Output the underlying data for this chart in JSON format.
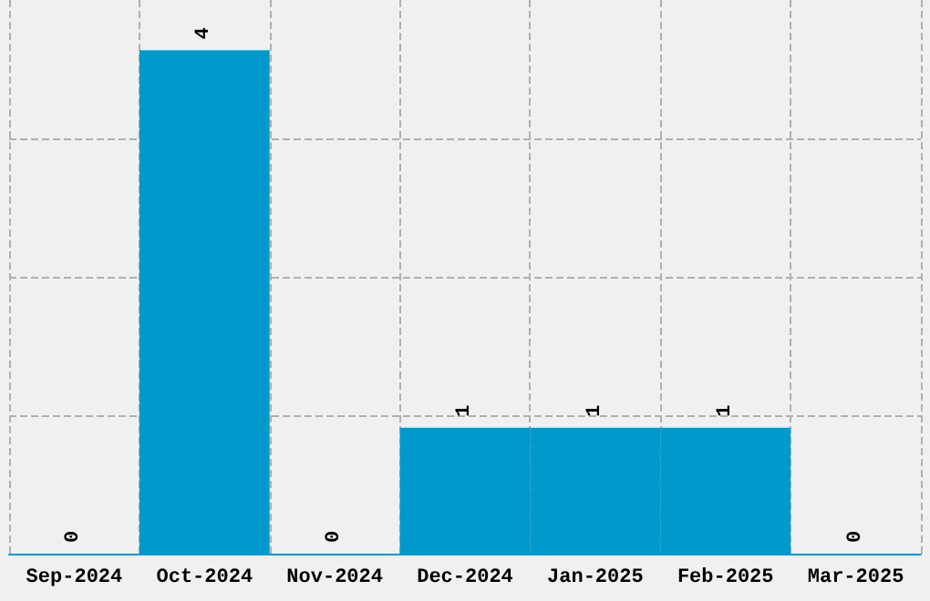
{
  "chart_data": {
    "type": "bar",
    "categories": [
      "Sep-2024",
      "Oct-2024",
      "Nov-2024",
      "Dec-2024",
      "Jan-2025",
      "Feb-2025",
      "Mar-2025"
    ],
    "values": [
      0,
      4,
      0,
      1,
      1,
      1,
      0
    ],
    "color": "#0099cc",
    "data_labels": true,
    "grid": true,
    "tick_labels": "x",
    "ylim": [
      0,
      4.4
    ],
    "yticks": [
      {
        "value": 1.1,
        "label": null
      },
      {
        "value": 2.2,
        "label": null
      },
      {
        "value": 3.3,
        "label": null
      }
    ]
  }
}
